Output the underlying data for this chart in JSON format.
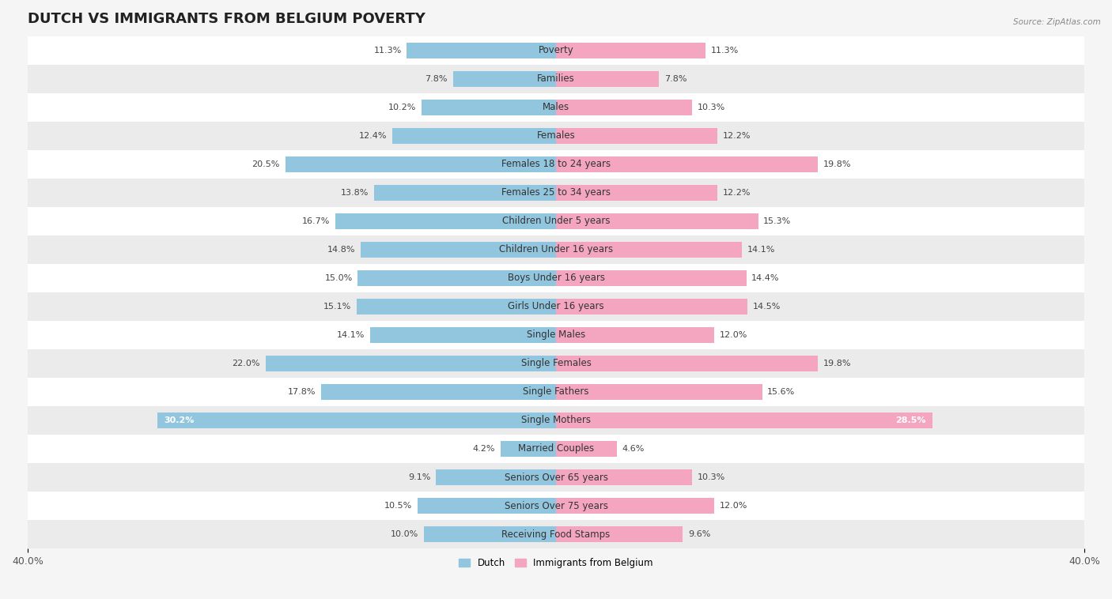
{
  "title": "DUTCH VS IMMIGRANTS FROM BELGIUM POVERTY",
  "source": "Source: ZipAtlas.com",
  "categories": [
    "Poverty",
    "Families",
    "Males",
    "Females",
    "Females 18 to 24 years",
    "Females 25 to 34 years",
    "Children Under 5 years",
    "Children Under 16 years",
    "Boys Under 16 years",
    "Girls Under 16 years",
    "Single Males",
    "Single Females",
    "Single Fathers",
    "Single Mothers",
    "Married Couples",
    "Seniors Over 65 years",
    "Seniors Over 75 years",
    "Receiving Food Stamps"
  ],
  "dutch_values": [
    11.3,
    7.8,
    10.2,
    12.4,
    20.5,
    13.8,
    16.7,
    14.8,
    15.0,
    15.1,
    14.1,
    22.0,
    17.8,
    30.2,
    4.2,
    9.1,
    10.5,
    10.0
  ],
  "belgium_values": [
    11.3,
    7.8,
    10.3,
    12.2,
    19.8,
    12.2,
    15.3,
    14.1,
    14.4,
    14.5,
    12.0,
    19.8,
    15.6,
    28.5,
    4.6,
    10.3,
    12.0,
    9.6
  ],
  "dutch_color": "#92c5de",
  "belgium_color": "#f4a6c0",
  "dutch_label": "Dutch",
  "belgium_label": "Immigrants from Belgium",
  "x_max": 40.0,
  "bar_height": 0.55,
  "background_color": "#f5f5f5",
  "row_color_light": "#ffffff",
  "row_color_dark": "#ebebeb",
  "title_fontsize": 13,
  "label_fontsize": 8.5,
  "tick_fontsize": 9,
  "value_fontsize": 8.0,
  "single_mothers_value_color": "#ffffff"
}
